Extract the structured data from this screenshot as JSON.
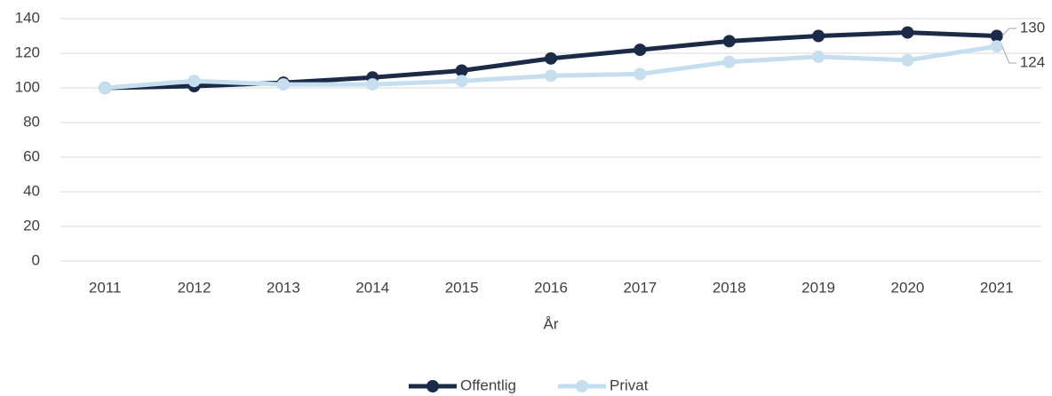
{
  "chart_data": {
    "type": "line",
    "x_label": "År",
    "categories": [
      "2011",
      "2012",
      "2013",
      "2014",
      "2015",
      "2016",
      "2017",
      "2018",
      "2019",
      "2020",
      "2021"
    ],
    "series": [
      {
        "name": "Offentlig",
        "color": "#1b2a47",
        "values": [
          100,
          101,
          103,
          106,
          110,
          117,
          122,
          127,
          130,
          132,
          130
        ]
      },
      {
        "name": "Privat",
        "color": "#c5def0",
        "values": [
          100,
          104,
          102,
          102,
          104,
          107,
          108,
          115,
          118,
          116,
          124
        ]
      }
    ],
    "ylim": [
      0,
      140
    ],
    "yticks": [
      0,
      20,
      40,
      60,
      80,
      100,
      120,
      140
    ],
    "grid": true,
    "legend": "bottom"
  }
}
